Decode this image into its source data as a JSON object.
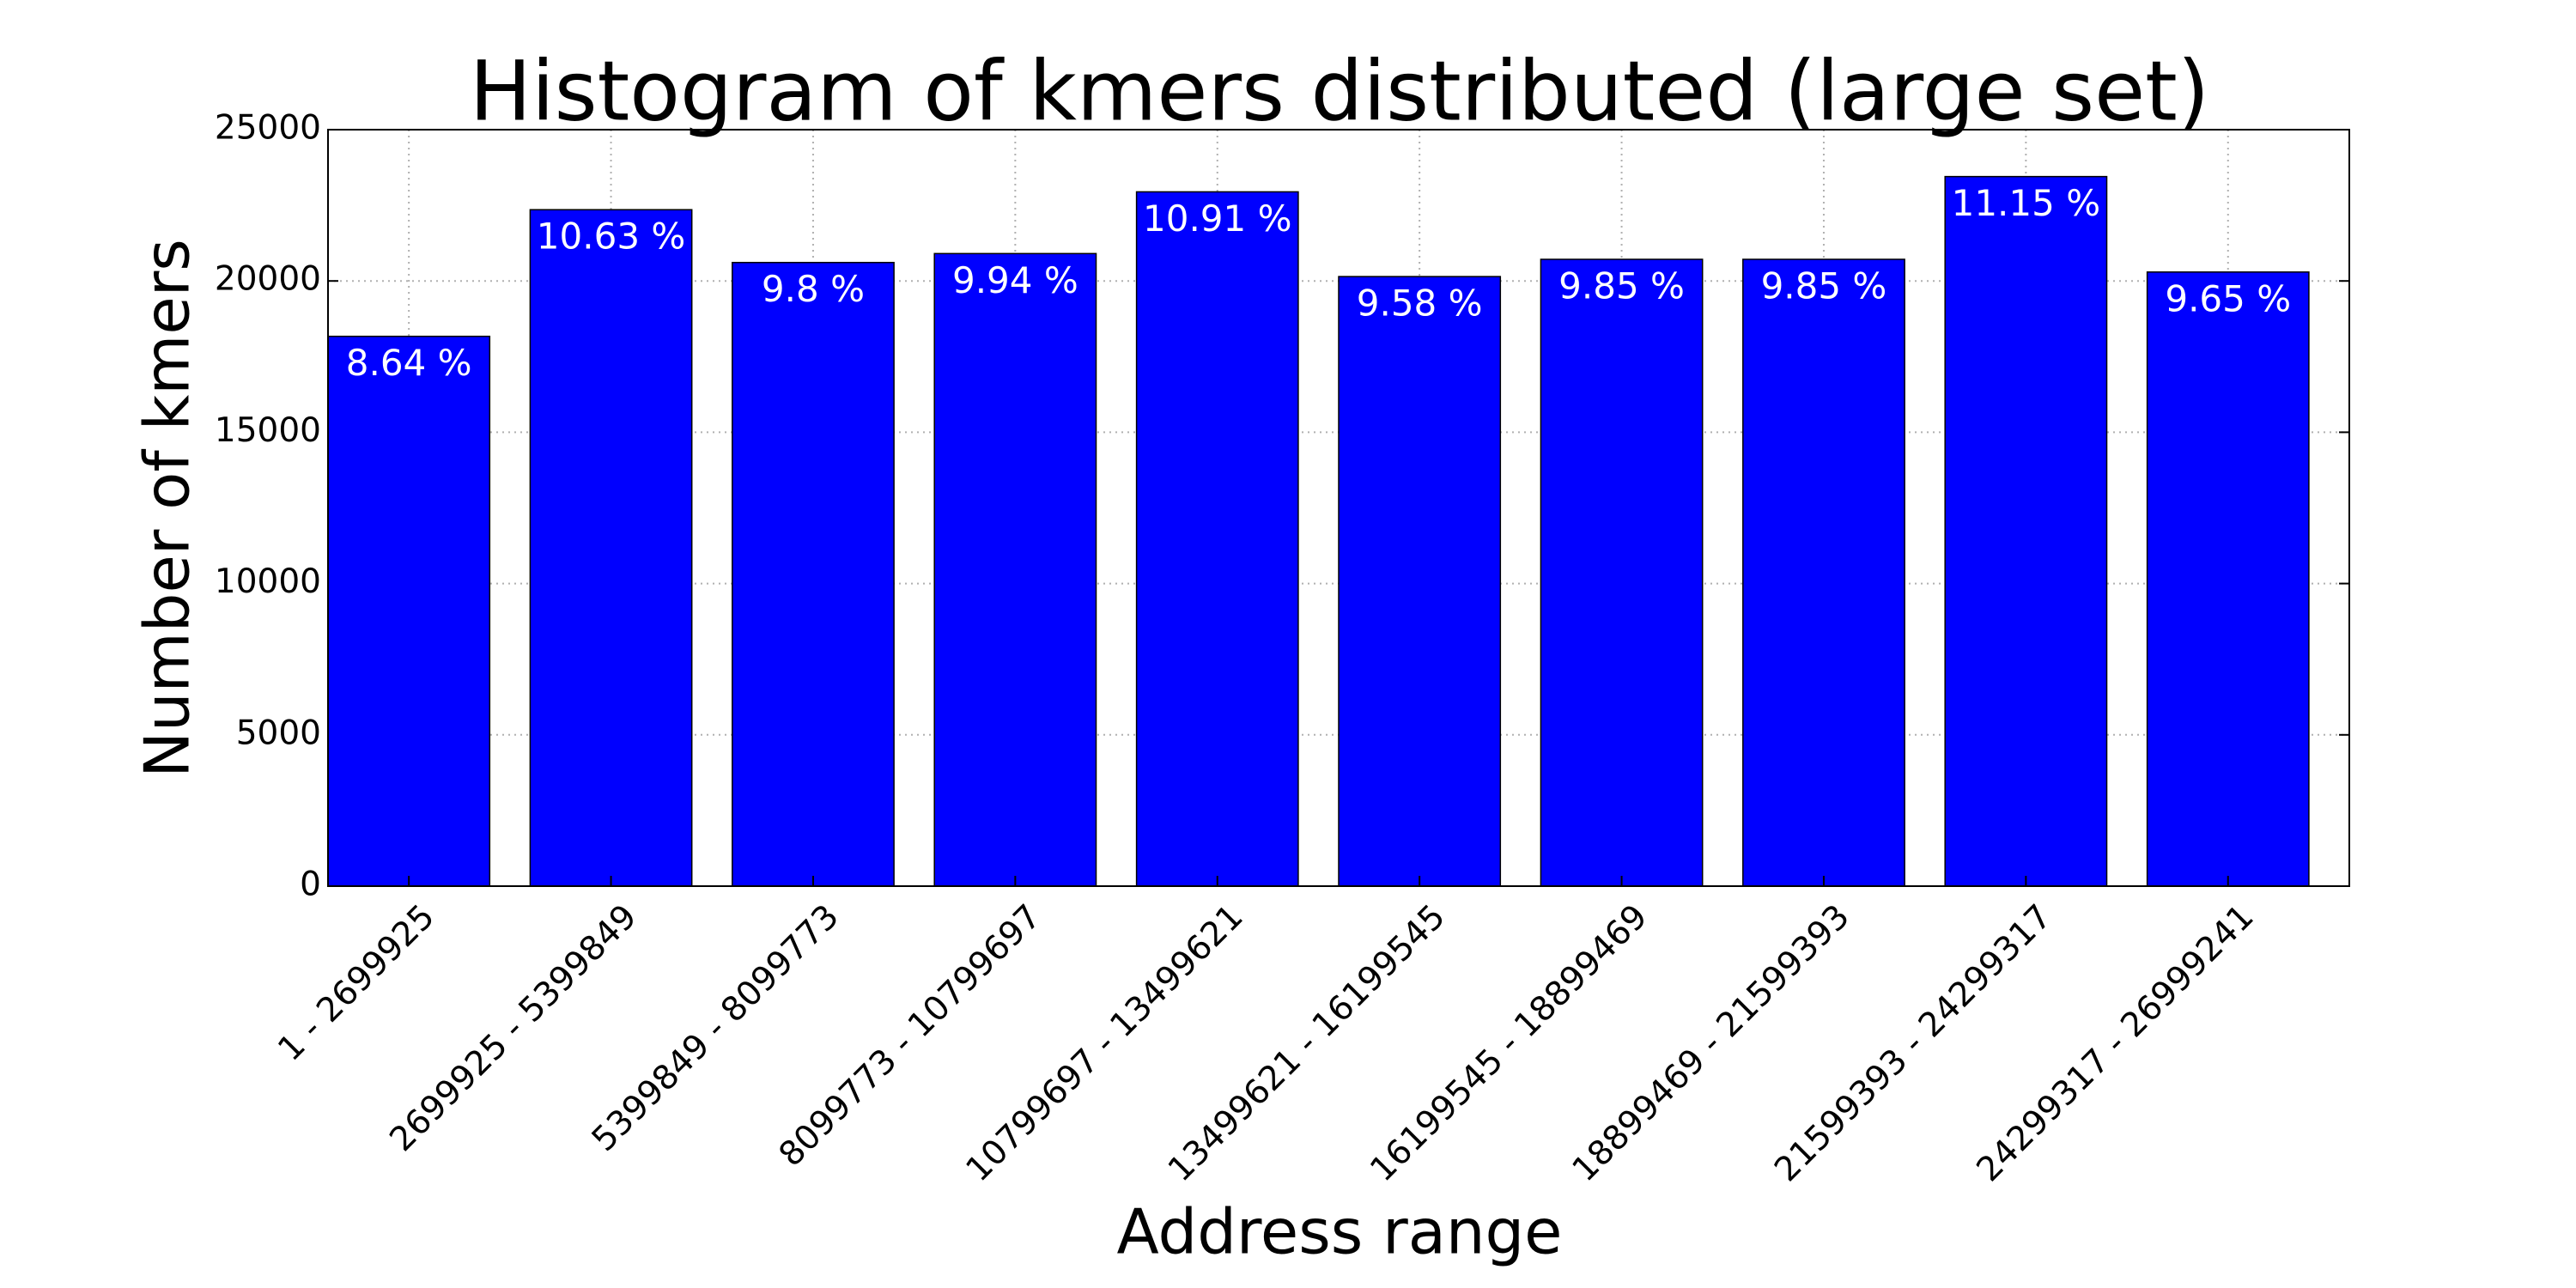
{
  "chart_data": {
    "type": "bar",
    "title": "Histogram of kmers distributed (large set)",
    "x_label": "Address range",
    "y_label": "Number of kmers",
    "categories": [
      "1 - 2699925",
      "2699925 - 5399849",
      "5399849 - 8099773",
      "8099773 - 10799697",
      "10799697 - 13499621",
      "13499621 - 16199545",
      "16199545 - 18899469",
      "18899469 - 21599393",
      "21599393 - 24299317",
      "24299317 - 26999241"
    ],
    "values": [
      18170,
      22355,
      20610,
      20905,
      22945,
      20145,
      20715,
      20715,
      23450,
      20295
    ],
    "bar_labels": [
      "8.64 %",
      "10.63 %",
      "9.8 %",
      "9.94 %",
      "10.91 %",
      "9.58 %",
      "9.85 %",
      "9.85 %",
      "11.15 %",
      "9.65 %"
    ],
    "color": "#0000ff",
    "ylim": [
      0,
      25000
    ],
    "yticks": [
      0,
      5000,
      10000,
      15000,
      20000,
      25000
    ],
    "grid": true
  }
}
